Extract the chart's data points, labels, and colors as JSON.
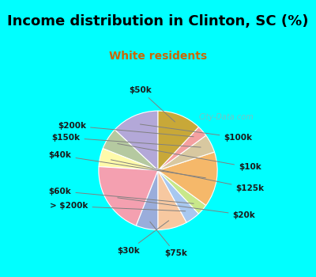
{
  "title": "Income distribution in Clinton, SC (%)",
  "subtitle": "White residents",
  "title_color": "#000000",
  "subtitle_color": "#cc6600",
  "background_top": "#00ffff",
  "background_chart": "#e8f5e9",
  "watermark": "City-Data.com",
  "labels": [
    "$100k",
    "$10k",
    "$125k",
    "$20k",
    "$75k",
    "$30k",
    "> $200k",
    "$60k",
    "$40k",
    "$150k",
    "$200k",
    "$50k"
  ],
  "values": [
    13,
    6,
    5,
    20,
    6,
    8,
    4,
    3,
    15,
    5,
    3,
    12
  ],
  "colors": [
    "#b3a8d8",
    "#b5c9a0",
    "#fffaaa",
    "#f4a0b0",
    "#9aaddb",
    "#f7c8a0",
    "#a8c8f0",
    "#c8e88a",
    "#f5b86a",
    "#d8c8a0",
    "#f4a0a0",
    "#c8a838"
  ],
  "figsize": [
    4.0,
    3.5
  ],
  "dpi": 100
}
